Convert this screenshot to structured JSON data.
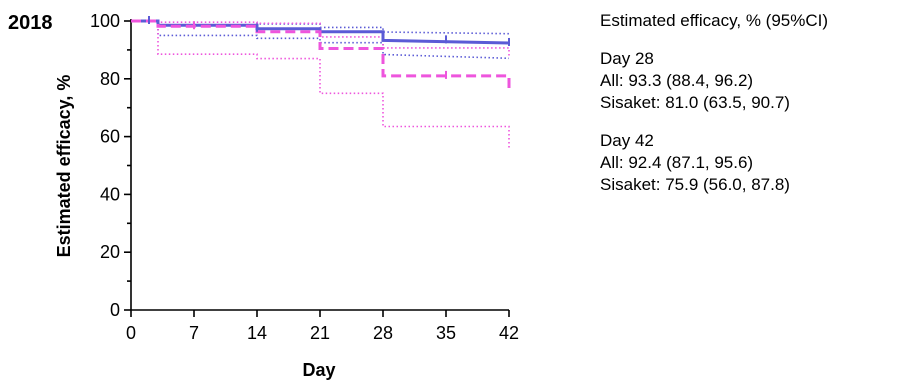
{
  "chart_data": {
    "type": "line",
    "panel_label": "2018",
    "xlabel": "Day",
    "ylabel": "Estimated efficacy, %",
    "xlim": [
      0,
      42
    ],
    "ylim": [
      0,
      100
    ],
    "x_ticks": [
      0,
      7,
      14,
      21,
      28,
      35,
      42
    ],
    "y_ticks": [
      0,
      20,
      40,
      60,
      80,
      100
    ],
    "grid": false,
    "series": [
      {
        "name": "All",
        "color": "#5b5bd6",
        "style": "solid",
        "x": [
          0,
          3,
          3,
          14,
          14,
          21,
          21,
          28,
          28,
          42
        ],
        "y": [
          100,
          100,
          98.5,
          98.5,
          97.3,
          97.3,
          96.3,
          96.3,
          93.3,
          92.4
        ],
        "censor_x": [
          2,
          14,
          35,
          42
        ],
        "censor_y": [
          100,
          97.3,
          93.3,
          92.4
        ],
        "ci_lower": {
          "x": [
            3,
            3,
            14,
            14,
            21,
            21,
            28,
            28,
            42
          ],
          "y": [
            100,
            95,
            95,
            94,
            94,
            92.5,
            92.5,
            88.4,
            87.1
          ]
        },
        "ci_upper": {
          "x": [
            14,
            14,
            21,
            21,
            28,
            28,
            42
          ],
          "y": [
            99.5,
            99,
            99,
            97.8,
            97.8,
            96.2,
            95.6
          ]
        }
      },
      {
        "name": "Sisaket",
        "color": "#ee55dd",
        "style": "dashed",
        "x": [
          0,
          3,
          3,
          14,
          14,
          21,
          21,
          28,
          28,
          42,
          42
        ],
        "y": [
          100,
          100,
          98.2,
          98.2,
          96.3,
          96.3,
          90.5,
          90.5,
          81.0,
          81.0,
          75.9
        ],
        "censor_x": [
          7,
          35
        ],
        "censor_y": [
          98.2,
          81.0
        ],
        "ci_lower": {
          "x": [
            3,
            3,
            14,
            14,
            21,
            21,
            28,
            28,
            42,
            42
          ],
          "y": [
            100,
            88.5,
            88.5,
            87,
            87,
            75,
            75,
            63.5,
            63.5,
            56
          ]
        },
        "ci_upper": {
          "x": [
            3,
            3,
            14,
            14,
            21,
            21,
            28,
            28,
            42,
            42
          ],
          "y": [
            100,
            99.6,
            99.6,
            99.2,
            99.2,
            94.5,
            94.5,
            90.7,
            90.7,
            87.8
          ]
        }
      }
    ]
  },
  "annotation": {
    "title": "Estimated efficacy, % (95%CI)",
    "day28_label": "Day 28",
    "day28_all": "All: 93.3 (88.4, 96.2)",
    "day28_sisaket": "Sisaket: 81.0 (63.5, 90.7)",
    "day42_label": "Day 42",
    "day42_all": "All: 92.4 (87.1, 95.6)",
    "day42_sisaket": "Sisaket: 75.9 (56.0, 87.8)"
  }
}
